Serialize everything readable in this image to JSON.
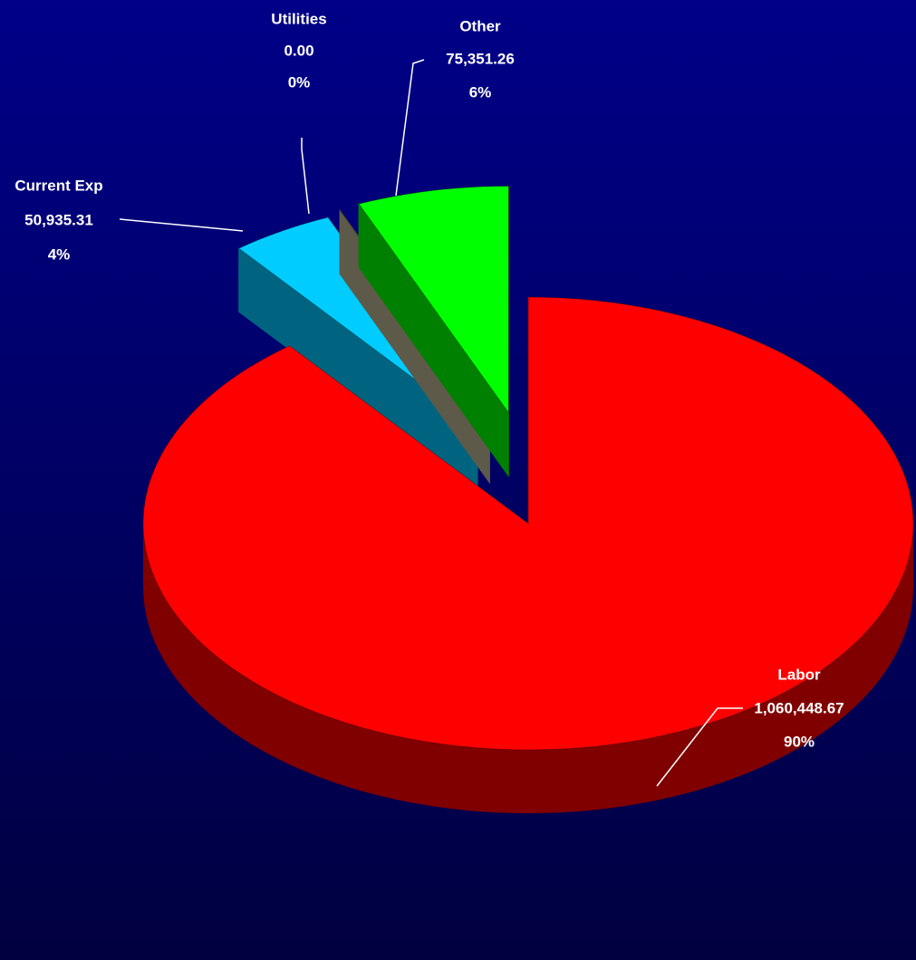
{
  "chart_data": {
    "type": "pie3d",
    "categories": [
      "Labor",
      "Current Exp",
      "Utilities",
      "Other"
    ],
    "values": [
      1060448.67,
      50935.31,
      0,
      75351.26
    ],
    "value_labels": [
      "1,060,448.67",
      "50,935.31",
      "0.00",
      "75,351.26"
    ],
    "percent_labels": [
      "90%",
      "4%",
      "0%",
      "6%"
    ],
    "colors": [
      "#ff0000",
      "#00ccff",
      "#9c9684",
      "#00ff00"
    ],
    "side_colors": [
      "#800000",
      "#006480",
      "#5e5a4a",
      "#008000"
    ],
    "exploded": [
      false,
      true,
      true,
      true
    ]
  }
}
